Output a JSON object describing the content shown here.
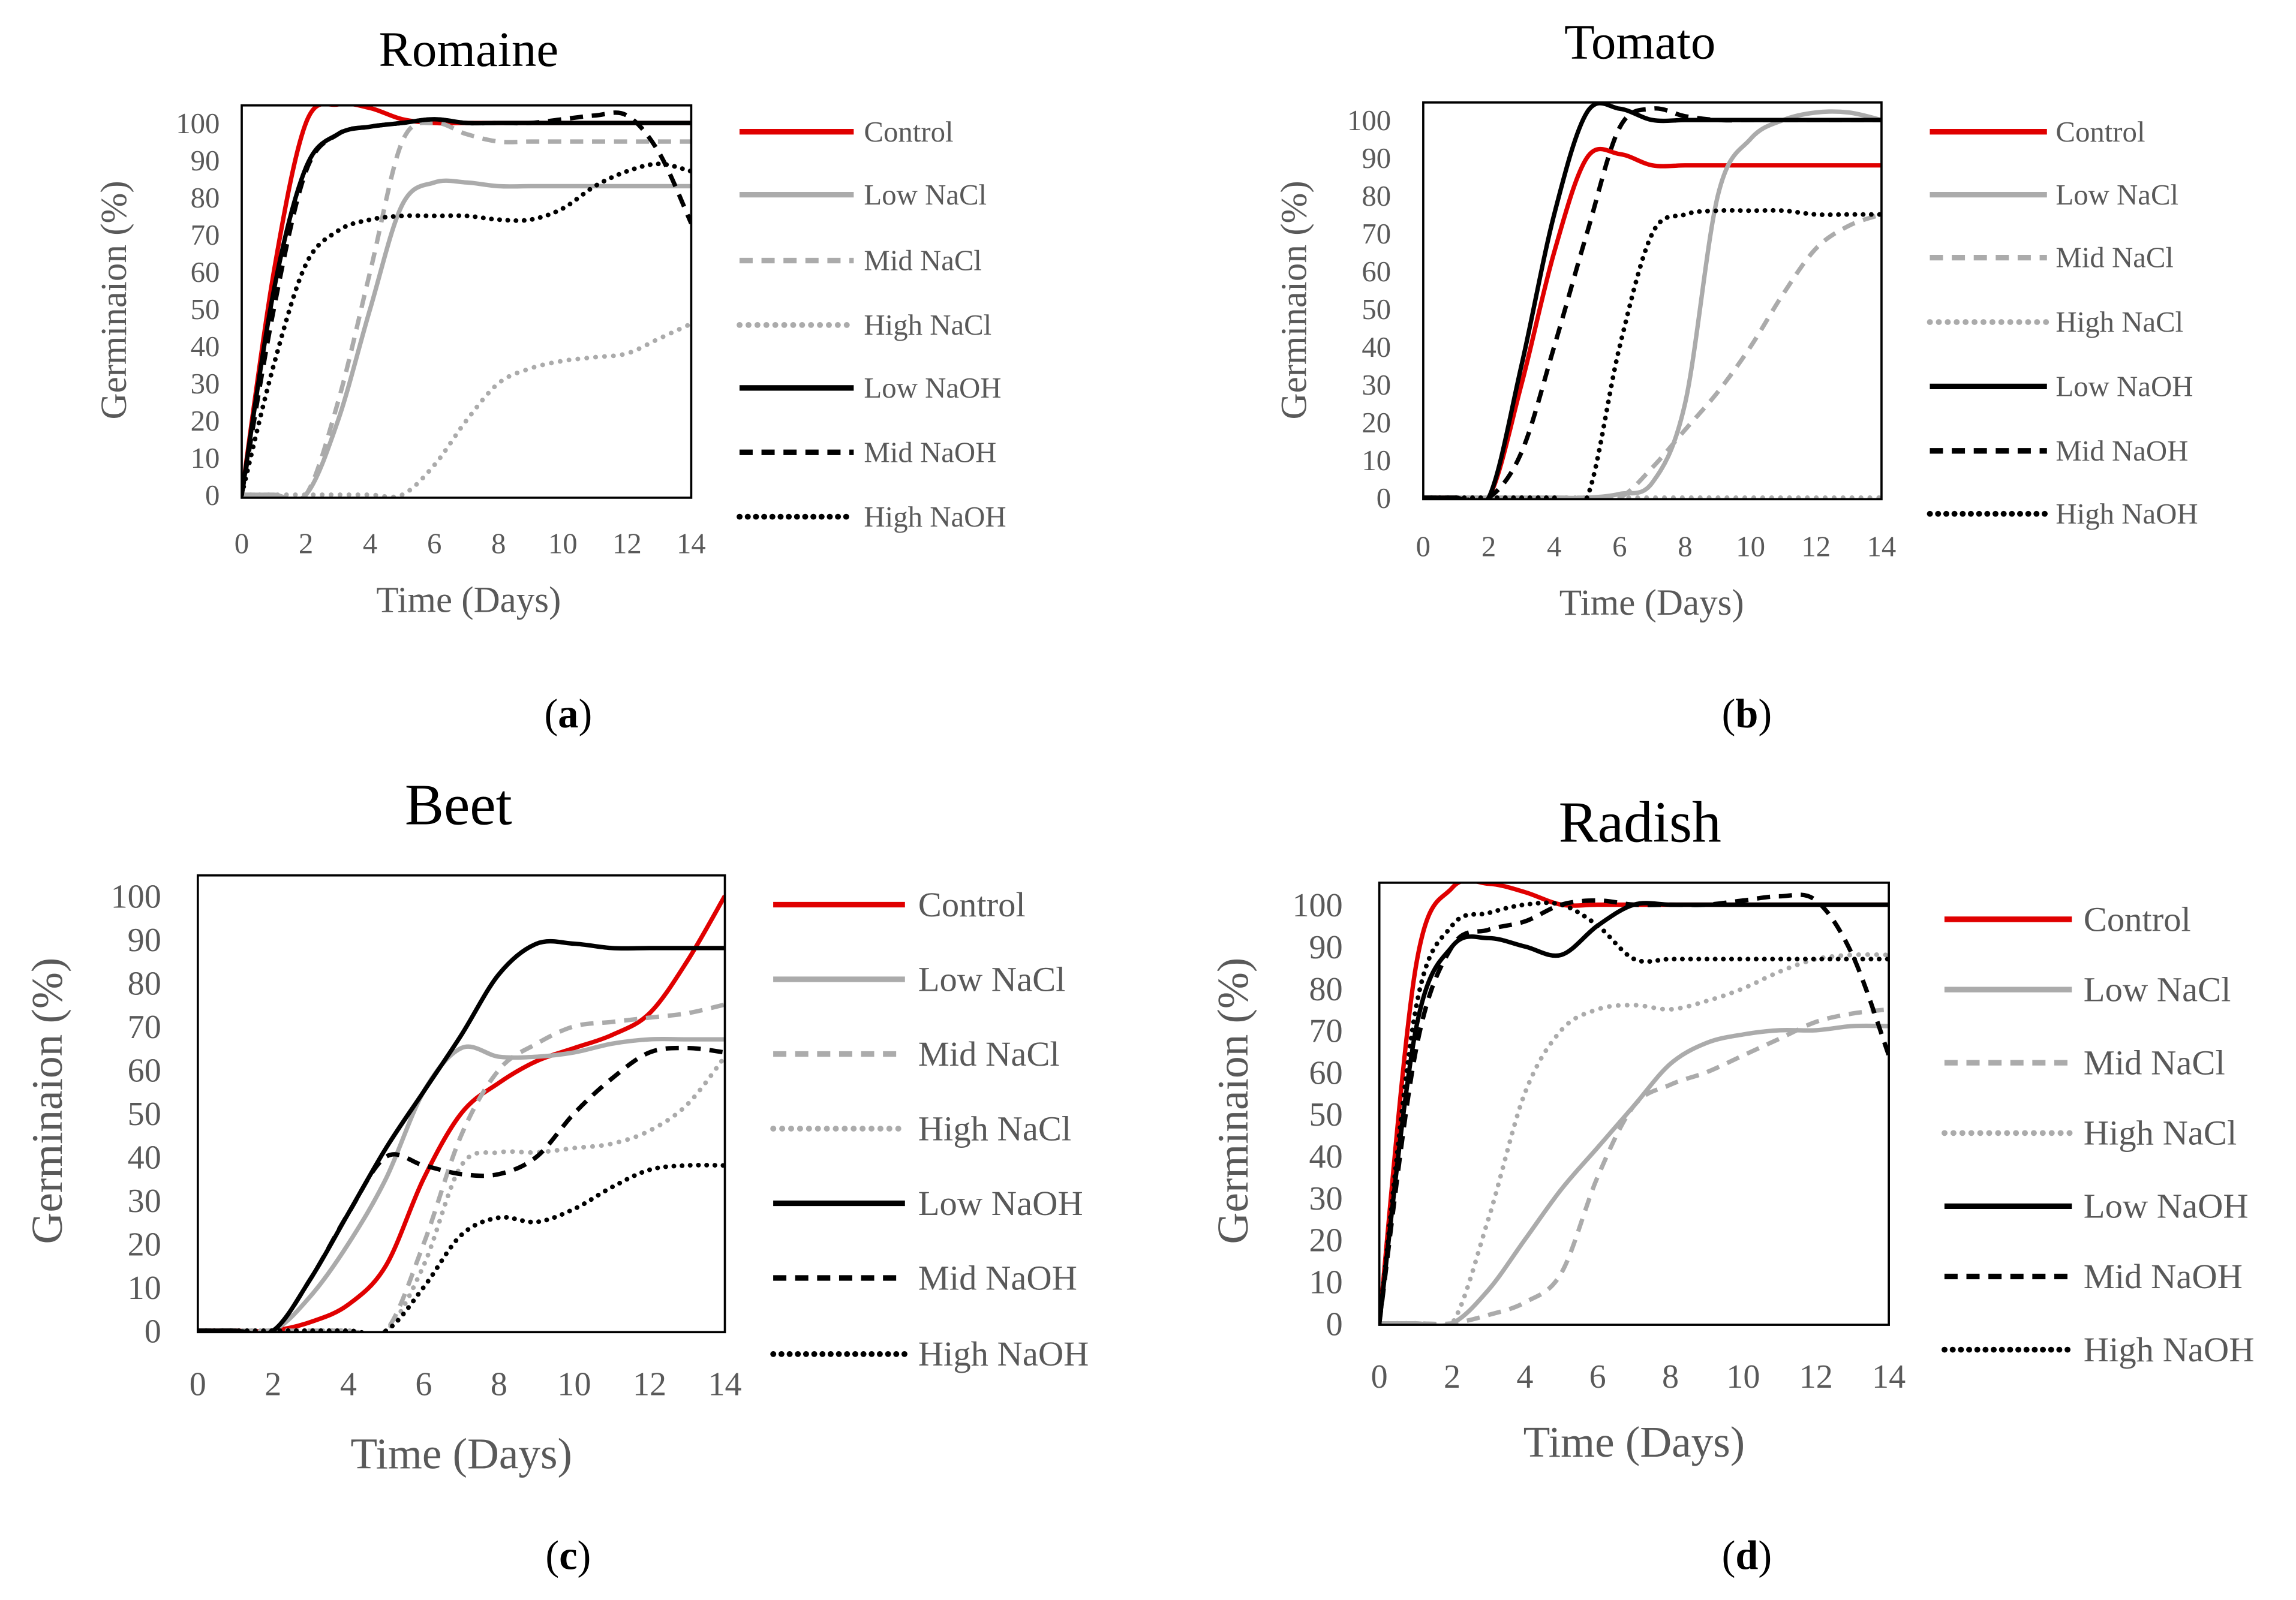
{
  "colors": {
    "control": "#e00000",
    "nacl": "#ababab",
    "naoh": "#000000"
  },
  "series_names": [
    "Control",
    "Low NaCl",
    "Mid NaCl",
    "High NaCl",
    "Low NaOH",
    "Mid NaOH",
    "High NaOH"
  ],
  "chart_data": [
    {
      "type": "line",
      "title": "Romaine",
      "caption": "(a)",
      "xlabel": "Time (Days)",
      "ylabel": "Germinaion (%)",
      "xlim": [
        0,
        14
      ],
      "ylim": [
        0,
        105
      ],
      "xticks": [
        0,
        2,
        4,
        6,
        8,
        10,
        12,
        14
      ],
      "yticks": [
        0,
        10,
        20,
        30,
        40,
        50,
        60,
        70,
        80,
        90,
        100
      ],
      "legend": "right",
      "x": [
        0,
        1,
        2,
        3,
        4,
        5,
        6,
        7,
        8,
        9,
        10,
        11,
        12,
        13,
        14
      ],
      "series": [
        {
          "name": "Control",
          "values": [
            0,
            60,
            100,
            105,
            104,
            101,
            100,
            100,
            100,
            100,
            100,
            100,
            100,
            100,
            100
          ]
        },
        {
          "name": "Low NaCl",
          "values": [
            0,
            0,
            0,
            20,
            50,
            78,
            84,
            84,
            83,
            83,
            83,
            83,
            83,
            83,
            83
          ]
        },
        {
          "name": "Mid NaCl",
          "values": [
            0,
            0,
            0,
            25,
            60,
            95,
            100,
            97,
            95,
            95,
            95,
            95,
            95,
            95,
            95
          ]
        },
        {
          "name": "High NaCl",
          "values": [
            0,
            0,
            0,
            0,
            0,
            0,
            8,
            20,
            30,
            34,
            36,
            37,
            38,
            42,
            46
          ]
        },
        {
          "name": "Low NaOH",
          "values": [
            0,
            55,
            88,
            97,
            99,
            100,
            101,
            100,
            100,
            100,
            100,
            100,
            100,
            100,
            100
          ]
        },
        {
          "name": "Mid NaOH",
          "values": [
            0,
            50,
            87,
            97,
            99,
            100,
            101,
            100,
            100,
            100,
            101,
            102,
            102,
            92,
            73
          ]
        },
        {
          "name": "High NaOH",
          "values": [
            0,
            35,
            62,
            71,
            74,
            75,
            75,
            75,
            74,
            74,
            77,
            83,
            87,
            89,
            87
          ]
        }
      ]
    },
    {
      "type": "line",
      "title": "Tomato",
      "caption": "(b)",
      "xlabel": "Time (Days)",
      "ylabel": "Germinaion (%)",
      "xlim": [
        0,
        14
      ],
      "ylim": [
        0,
        105
      ],
      "xticks": [
        0,
        2,
        4,
        6,
        8,
        10,
        12,
        14
      ],
      "yticks": [
        0,
        10,
        20,
        30,
        40,
        50,
        60,
        70,
        80,
        90,
        100
      ],
      "legend": "right",
      "x": [
        0,
        1,
        2,
        3,
        4,
        5,
        6,
        7,
        8,
        9,
        10,
        11,
        12,
        13,
        14
      ],
      "series": [
        {
          "name": "Control",
          "values": [
            0,
            0,
            0,
            30,
            65,
            90,
            91,
            88,
            88,
            88,
            88,
            88,
            88,
            88,
            88
          ]
        },
        {
          "name": "Low NaCl",
          "values": [
            0,
            0,
            0,
            0,
            0,
            0,
            1,
            4,
            25,
            80,
            95,
            100,
            102,
            102,
            100
          ]
        },
        {
          "name": "Mid NaCl",
          "values": [
            0,
            0,
            0,
            0,
            0,
            0,
            0,
            8,
            18,
            28,
            40,
            54,
            66,
            72,
            75
          ]
        },
        {
          "name": "High NaCl",
          "values": [
            0,
            0,
            0,
            0,
            0,
            0,
            0,
            0,
            0,
            0,
            0,
            0,
            0,
            0,
            0
          ]
        },
        {
          "name": "Low NaOH",
          "values": [
            0,
            0,
            0,
            35,
            75,
            102,
            103,
            100,
            100,
            100,
            100,
            100,
            100,
            100,
            100
          ]
        },
        {
          "name": "Mid NaOH",
          "values": [
            0,
            0,
            0,
            12,
            40,
            70,
            98,
            103,
            101,
            100,
            100,
            100,
            100,
            100,
            100
          ]
        },
        {
          "name": "High NaOH",
          "values": [
            0,
            0,
            0,
            0,
            0,
            0,
            40,
            70,
            75,
            76,
            76,
            76,
            75,
            75,
            75
          ]
        }
      ]
    },
    {
      "type": "line",
      "title": "Beet",
      "caption": "(c)",
      "xlabel": "Time (Days)",
      "ylabel": "Germinaion (%)",
      "xlim": [
        0,
        14
      ],
      "ylim": [
        0,
        105
      ],
      "xticks": [
        0,
        2,
        4,
        6,
        8,
        10,
        12,
        14
      ],
      "yticks": [
        0,
        10,
        20,
        30,
        40,
        50,
        60,
        70,
        80,
        90,
        100
      ],
      "legend": "right",
      "x": [
        0,
        1,
        2,
        3,
        4,
        5,
        6,
        7,
        8,
        9,
        10,
        11,
        12,
        13,
        14
      ],
      "series": [
        {
          "name": "Control",
          "values": [
            0,
            0,
            0,
            2,
            6,
            15,
            35,
            50,
            57,
            62,
            65,
            68,
            73,
            85,
            100
          ]
        },
        {
          "name": "Low NaCl",
          "values": [
            0,
            0,
            0,
            8,
            20,
            35,
            55,
            65,
            63,
            63,
            64,
            66,
            67,
            67,
            67
          ]
        },
        {
          "name": "Mid NaCl",
          "values": [
            0,
            0,
            0,
            0,
            0,
            0,
            20,
            45,
            60,
            66,
            70,
            71,
            72,
            73,
            75
          ]
        },
        {
          "name": "High NaCl",
          "values": [
            0,
            0,
            0,
            0,
            0,
            0,
            15,
            38,
            41,
            41,
            42,
            43,
            46,
            52,
            63
          ]
        },
        {
          "name": "Low NaOH",
          "values": [
            0,
            0,
            0,
            12,
            27,
            42,
            55,
            68,
            82,
            89,
            89,
            88,
            88,
            88,
            88
          ]
        },
        {
          "name": "Mid NaOH",
          "values": [
            0,
            0,
            0,
            12,
            27,
            40,
            38,
            36,
            36,
            40,
            50,
            58,
            64,
            65,
            64
          ]
        },
        {
          "name": "High NaOH",
          "values": [
            0,
            0,
            0,
            0,
            0,
            0,
            10,
            22,
            26,
            25,
            28,
            33,
            37,
            38,
            38
          ]
        }
      ]
    },
    {
      "type": "line",
      "title": "Radish",
      "caption": "(d)",
      "xlabel": "Time (Days)",
      "ylabel": "Germinaion (%)",
      "xlim": [
        0,
        14
      ],
      "ylim": [
        0,
        105
      ],
      "xticks": [
        0,
        2,
        4,
        6,
        8,
        10,
        12,
        14
      ],
      "yticks": [
        0,
        10,
        20,
        30,
        40,
        50,
        60,
        70,
        80,
        90,
        100
      ],
      "legend": "right",
      "x": [
        0,
        1,
        2,
        3,
        4,
        5,
        6,
        7,
        8,
        9,
        10,
        11,
        12,
        13,
        14
      ],
      "series": [
        {
          "name": "Control",
          "values": [
            0,
            85,
            104,
            105,
            103,
            100,
            100,
            100,
            100,
            100,
            100,
            100,
            100,
            100,
            100
          ]
        },
        {
          "name": "Low NaCl",
          "values": [
            0,
            0,
            0,
            8,
            20,
            32,
            42,
            52,
            62,
            67,
            69,
            70,
            70,
            71,
            71
          ]
        },
        {
          "name": "Mid NaCl",
          "values": [
            0,
            0,
            0,
            2,
            5,
            12,
            35,
            52,
            57,
            60,
            64,
            68,
            72,
            74,
            75
          ]
        },
        {
          "name": "High NaCl",
          "values": [
            0,
            0,
            0,
            25,
            55,
            70,
            75,
            76,
            75,
            77,
            80,
            84,
            87,
            88,
            88
          ]
        },
        {
          "name": "Low NaOH",
          "values": [
            0,
            70,
            90,
            92,
            90,
            88,
            95,
            100,
            100,
            100,
            100,
            100,
            100,
            100,
            100
          ]
        },
        {
          "name": "Mid NaOH",
          "values": [
            0,
            65,
            90,
            94,
            96,
            100,
            101,
            100,
            100,
            100,
            101,
            102,
            101,
            88,
            64
          ]
        },
        {
          "name": "High NaOH",
          "values": [
            0,
            75,
            95,
            98,
            100,
            100,
            95,
            87,
            87,
            87,
            87,
            87,
            87,
            87,
            87
          ]
        }
      ]
    }
  ]
}
